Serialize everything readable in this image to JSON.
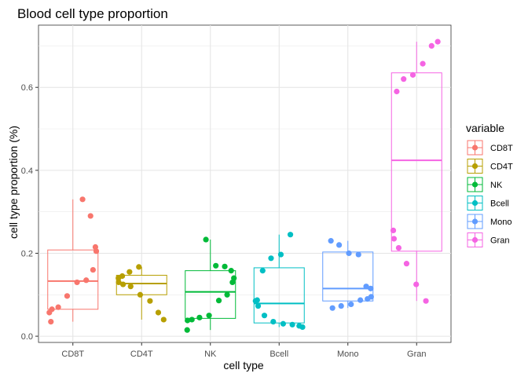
{
  "chart_data": {
    "type": "boxplot",
    "title": "Blood cell type proportion",
    "xlabel": "cell type",
    "ylabel": "cell type proportion (%)",
    "categories": [
      "CD8T",
      "CD4T",
      "NK",
      "Bcell",
      "Mono",
      "Gran"
    ],
    "yticks": [
      0.0,
      0.2,
      0.4,
      0.6
    ],
    "ytick_labels": [
      "0.0",
      "0.2",
      "0.4",
      "0.6"
    ],
    "ylim": [
      -0.015,
      0.75
    ],
    "grid": true,
    "legend": {
      "title": "variable",
      "position": "right"
    },
    "series": [
      {
        "name": "CD8T",
        "color": "#F8766D",
        "box": {
          "whisker_low": 0.035,
          "q1": 0.065,
          "median": 0.133,
          "q3": 0.208,
          "whisker_high": 0.33
        },
        "points": [
          0.33,
          0.29,
          0.215,
          0.205,
          0.16,
          0.135,
          0.13,
          0.097,
          0.07,
          0.065,
          0.057,
          0.035
        ]
      },
      {
        "name": "CD4T",
        "color": "#B79F00",
        "box": {
          "whisker_low": 0.04,
          "q1": 0.1,
          "median": 0.127,
          "q3": 0.147,
          "whisker_high": 0.167
        },
        "points": [
          0.167,
          0.155,
          0.145,
          0.14,
          0.13,
          0.125,
          0.12,
          0.1,
          0.085,
          0.057,
          0.04
        ]
      },
      {
        "name": "NK",
        "color": "#00BA38",
        "box": {
          "whisker_low": 0.015,
          "q1": 0.043,
          "median": 0.107,
          "q3": 0.158,
          "whisker_high": 0.233
        },
        "points": [
          0.233,
          0.17,
          0.168,
          0.158,
          0.14,
          0.13,
          0.1,
          0.086,
          0.05,
          0.045,
          0.04,
          0.038,
          0.015
        ]
      },
      {
        "name": "Bcell",
        "color": "#00BFC4",
        "box": {
          "whisker_low": 0.022,
          "q1": 0.032,
          "median": 0.079,
          "q3": 0.165,
          "whisker_high": 0.245
        },
        "points": [
          0.245,
          0.197,
          0.188,
          0.158,
          0.087,
          0.085,
          0.073,
          0.05,
          0.035,
          0.03,
          0.028,
          0.025,
          0.022
        ]
      },
      {
        "name": "Mono",
        "color": "#619CFF",
        "box": {
          "whisker_low": 0.068,
          "q1": 0.085,
          "median": 0.115,
          "q3": 0.203,
          "whisker_high": 0.23
        },
        "points": [
          0.23,
          0.22,
          0.2,
          0.197,
          0.12,
          0.115,
          0.095,
          0.09,
          0.087,
          0.077,
          0.073,
          0.068
        ]
      },
      {
        "name": "Gran",
        "color": "#F564E3",
        "box": {
          "whisker_low": 0.085,
          "q1": 0.205,
          "median": 0.424,
          "q3": 0.635,
          "whisker_high": 0.71
        },
        "points": [
          0.71,
          0.7,
          0.657,
          0.63,
          0.62,
          0.59,
          0.255,
          0.235,
          0.213,
          0.175,
          0.125,
          0.085
        ]
      }
    ]
  }
}
